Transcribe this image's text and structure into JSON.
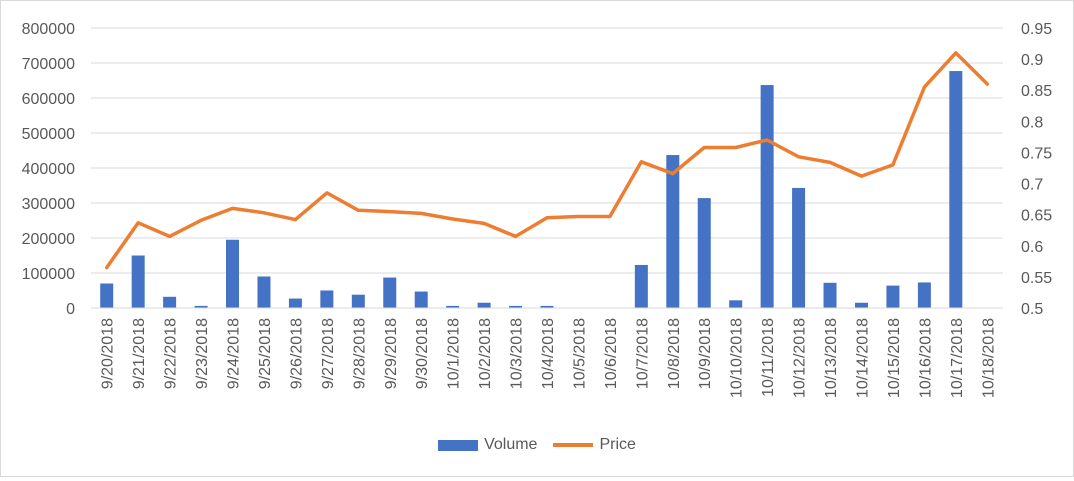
{
  "chart_data": {
    "type": "bar",
    "categories": [
      "9/20/2018",
      "9/21/2018",
      "9/22/2018",
      "9/23/2018",
      "9/24/2018",
      "9/25/2018",
      "9/26/2018",
      "9/27/2018",
      "9/28/2018",
      "9/29/2018",
      "9/30/2018",
      "10/1/2018",
      "10/2/2018",
      "10/3/2018",
      "10/4/2018",
      "10/5/2018",
      "10/6/2018",
      "10/7/2018",
      "10/8/2018",
      "10/9/2018",
      "10/10/2018",
      "10/11/2018",
      "10/12/2018",
      "10/13/2018",
      "10/14/2018",
      "10/15/2018",
      "10/16/2018",
      "10/17/2018",
      "10/18/2018"
    ],
    "series": [
      {
        "name": "Volume",
        "type": "bar",
        "axis": "left",
        "color": "#4472c4",
        "values": [
          70000,
          150000,
          32000,
          6000,
          195000,
          90000,
          27000,
          50000,
          38000,
          87000,
          47000,
          6000,
          15000,
          6000,
          6000,
          0,
          0,
          123000,
          437000,
          314000,
          22000,
          637000,
          343000,
          72000,
          15000,
          64000,
          73000,
          677000,
          0
        ]
      },
      {
        "name": "Price",
        "type": "line",
        "axis": "right",
        "color": "#ed7d31",
        "values": [
          0.565,
          0.637,
          0.615,
          0.641,
          0.66,
          0.653,
          0.642,
          0.685,
          0.657,
          0.655,
          0.652,
          0.643,
          0.636,
          0.615,
          0.645,
          0.647,
          0.647,
          0.735,
          0.716,
          0.758,
          0.758,
          0.77,
          0.743,
          0.734,
          0.712,
          0.73,
          0.855,
          0.91,
          0.86
        ]
      }
    ],
    "y_left": {
      "min": 0,
      "max": 800000,
      "step": 100000,
      "tick_labels": [
        "0",
        "100000",
        "200000",
        "300000",
        "400000",
        "500000",
        "600000",
        "700000",
        "800000"
      ]
    },
    "y_right": {
      "min": 0.5,
      "max": 0.95,
      "step": 0.05,
      "tick_labels": [
        "0.5",
        "0.55",
        "0.6",
        "0.65",
        "0.7",
        "0.75",
        "0.8",
        "0.85",
        "0.9",
        "0.95"
      ]
    },
    "grid": true,
    "legend_position": "bottom"
  }
}
